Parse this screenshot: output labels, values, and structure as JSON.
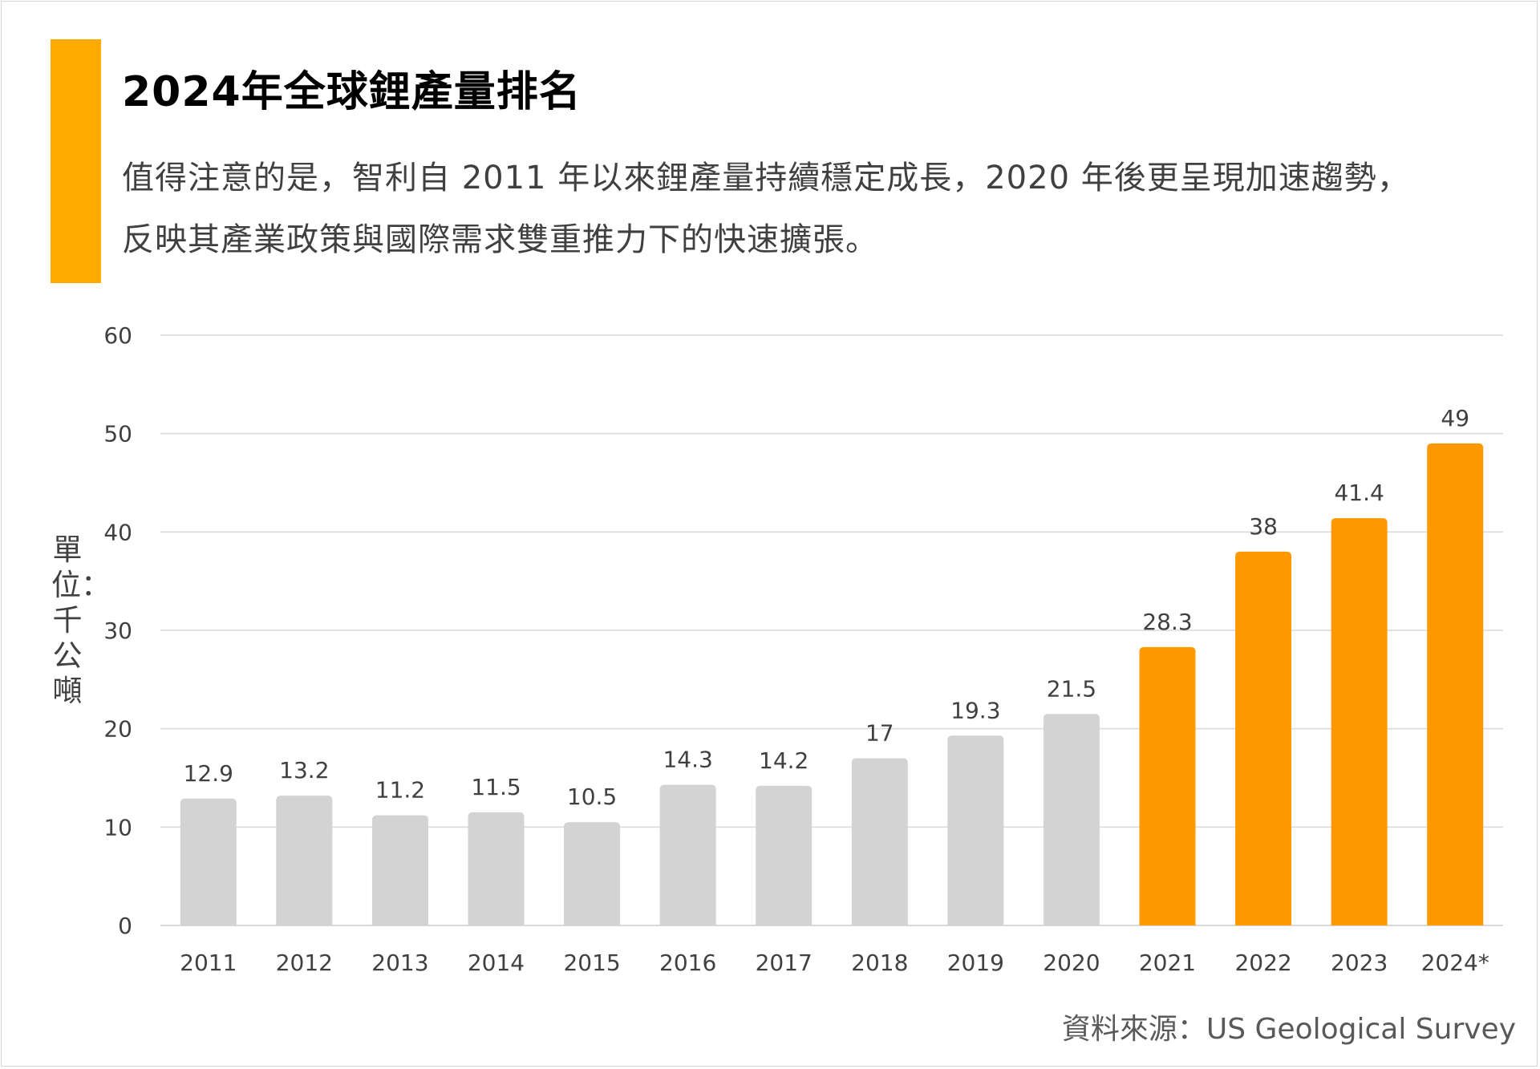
{
  "title": "2024年全球鋰產量排名",
  "subtitle": "值得注意的是，智利自 2011 年以來鋰產量持續穩定成長，2020 年後更呈現加速趨勢，反映其產業政策與國際需求雙重推力下的快速擴張。",
  "source": "資料來源：US Geological Survey",
  "colors": {
    "accent": "#FFAA00",
    "highlight_bar": "#FF9900",
    "base_bar": "#D3D3D3",
    "gridline": "#D9D9D9"
  },
  "chart_data": {
    "type": "bar",
    "title": "2024年全球鋰產量排名",
    "ylabel": "單位：千公噸",
    "xlabel": "",
    "ylim": [
      0,
      60
    ],
    "yticks": [
      0,
      10,
      20,
      30,
      40,
      50,
      60
    ],
    "grid": true,
    "categories": [
      "2011",
      "2012",
      "2013",
      "2014",
      "2015",
      "2016",
      "2017",
      "2018",
      "2019",
      "2020",
      "2021",
      "2022",
      "2023",
      "2024*"
    ],
    "values": [
      12.9,
      13.2,
      11.2,
      11.5,
      10.5,
      14.3,
      14.2,
      17,
      19.3,
      21.5,
      28.3,
      38,
      41.4,
      49
    ],
    "data_labels": [
      "12.9",
      "13.2",
      "11.2",
      "11.5",
      "10.5",
      "14.3",
      "14.2",
      "17",
      "19.3",
      "21.5",
      "28.3",
      "38",
      "41.4",
      "49"
    ],
    "highlight_from_index": 10
  }
}
